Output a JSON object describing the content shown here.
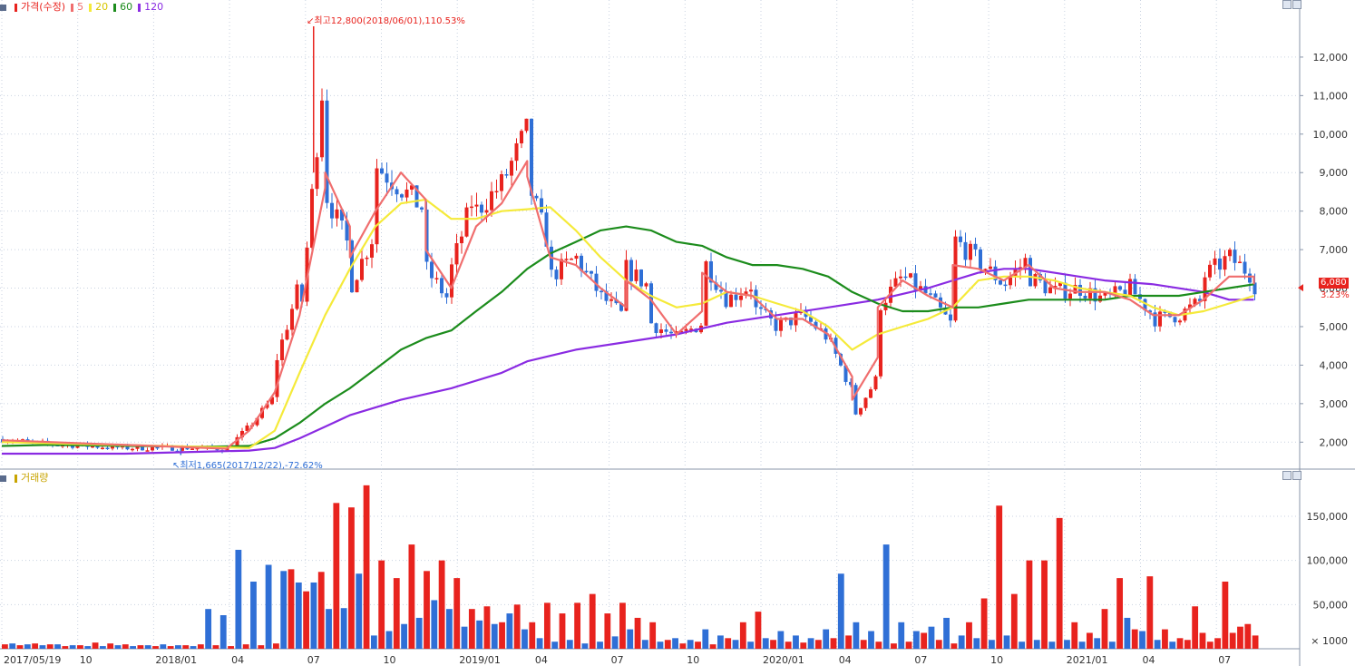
{
  "price_legend": {
    "price_label": "가격(수정)",
    "ma5": "5",
    "ma20": "20",
    "ma60": "60",
    "ma120": "120"
  },
  "volume_legend": {
    "label": "거래량"
  },
  "annotations": {
    "high": "최고12,800(2018/06/01),110.53%",
    "low": "최저1,665(2017/12/22),-72.62%"
  },
  "last_price": {
    "value": "6,080",
    "change": "3.23%"
  },
  "colors": {
    "up": "#e8231e",
    "down": "#2f6fd6",
    "ma5": "#f06e6e",
    "ma20": "#f5ea3a",
    "ma60": "#1c8c1c",
    "ma120": "#8a2be2",
    "grid": "#c9d2e0",
    "axis": "#8a96aa"
  },
  "chart_data": [
    {
      "type": "candlestick",
      "title": "가격(수정)",
      "xlabel": "",
      "ylabel": "",
      "ylim": [
        1300,
        13200
      ],
      "y_ticks": [
        2000,
        3000,
        4000,
        5000,
        6000,
        7000,
        8000,
        9000,
        10000,
        11000,
        12000
      ],
      "y_tick_labels": [
        "2,000",
        "3,000",
        "4,000",
        "5,000",
        "6,000",
        "7,000",
        "8,000",
        "9,000",
        "10,000",
        "11,000",
        "12,000"
      ],
      "close_path": [
        [
          "2017/05/19",
          2080
        ],
        [
          "2017/07",
          1950
        ],
        [
          "2017/10",
          1850
        ],
        [
          "2018/01",
          1850
        ],
        [
          "2018/02",
          1820
        ],
        [
          "2018/03",
          2400
        ],
        [
          "2018/04",
          3200
        ],
        [
          "2018/04",
          4000
        ],
        [
          "2018/05",
          6100
        ],
        [
          "2018/05",
          5000
        ],
        [
          "2018/06",
          12000
        ],
        [
          "2018/06",
          9000
        ],
        [
          "2018/06",
          8500
        ],
        [
          "2018/07",
          7000
        ],
        [
          "2018/07",
          6000
        ],
        [
          "2018/08",
          7500
        ],
        [
          "2018/08",
          9200
        ],
        [
          "2018/09",
          8600
        ],
        [
          "2018/10",
          8000
        ],
        [
          "2018/10",
          6500
        ],
        [
          "2018/11",
          5600
        ],
        [
          "2018/11",
          6500
        ],
        [
          "2018/12",
          8600
        ],
        [
          "2018/12",
          8000
        ],
        [
          "2019/01",
          8700
        ],
        [
          "2019/02",
          10100
        ],
        [
          "2019/02",
          8800
        ],
        [
          "2019/03",
          7000
        ],
        [
          "2019/03",
          6300
        ],
        [
          "2019/04",
          6800
        ],
        [
          "2019/05",
          5800
        ],
        [
          "2019/06",
          5200
        ],
        [
          "2019/06",
          6500
        ],
        [
          "2019/07",
          6000
        ],
        [
          "2019/07",
          5100
        ],
        [
          "2019/08",
          4700
        ],
        [
          "2019/09",
          5100
        ],
        [
          "2019/09",
          6800
        ],
        [
          "2019/10",
          5700
        ],
        [
          "2019/11",
          6100
        ],
        [
          "2019/11",
          5500
        ],
        [
          "2019/12",
          5000
        ],
        [
          "2020/01",
          5300
        ],
        [
          "2020/02",
          4700
        ],
        [
          "2020/03",
          3300
        ],
        [
          "2020/03",
          2600
        ],
        [
          "2020/04",
          3700
        ],
        [
          "2020/04",
          5500
        ],
        [
          "2020/05",
          6300
        ],
        [
          "2020/06",
          5800
        ],
        [
          "2020/07",
          5000
        ],
        [
          "2020/07",
          7300
        ],
        [
          "2020/08",
          6700
        ],
        [
          "2020/09",
          6100
        ],
        [
          "2020/10",
          6800
        ],
        [
          "2020/10",
          6300
        ],
        [
          "2020/11",
          5900
        ],
        [
          "2020/12",
          6000
        ],
        [
          "2021/01",
          5700
        ],
        [
          "2021/02",
          6000
        ],
        [
          "2021/03",
          5300
        ],
        [
          "2021/03",
          5200
        ],
        [
          "2021/04",
          5300
        ],
        [
          "2021/05",
          5700
        ],
        [
          "2021/05",
          6300
        ],
        [
          "2021/06",
          6800
        ],
        [
          "2021/07",
          6300
        ],
        [
          "2021/07",
          6080
        ]
      ],
      "ma5_path": [
        [
          "2017/05/19",
          2050
        ],
        [
          "2018/02",
          1830
        ],
        [
          "2018/03",
          2300
        ],
        [
          "2018/04",
          3300
        ],
        [
          "2018/05",
          5300
        ],
        [
          "2018/06",
          8600
        ],
        [
          "2018/06",
          9000
        ],
        [
          "2018/07",
          7600
        ],
        [
          "2018/07",
          6800
        ],
        [
          "2018/08",
          8000
        ],
        [
          "2018/09",
          9000
        ],
        [
          "2018/10",
          8300
        ],
        [
          "2018/10",
          7000
        ],
        [
          "2018/11",
          6000
        ],
        [
          "2018/12",
          7600
        ],
        [
          "2019/01",
          8200
        ],
        [
          "2019/02",
          9300
        ],
        [
          "2019/02",
          8900
        ],
        [
          "2019/03",
          6800
        ],
        [
          "2019/04",
          6600
        ],
        [
          "2019/05",
          6000
        ],
        [
          "2019/06",
          5500
        ],
        [
          "2019/06",
          6200
        ],
        [
          "2019/07",
          5700
        ],
        [
          "2019/08",
          4800
        ],
        [
          "2019/09",
          5400
        ],
        [
          "2019/09",
          6400
        ],
        [
          "2019/10",
          5900
        ],
        [
          "2019/11",
          5800
        ],
        [
          "2019/12",
          5200
        ],
        [
          "2020/01",
          5200
        ],
        [
          "2020/02",
          4800
        ],
        [
          "2020/03",
          3700
        ],
        [
          "2020/03",
          3100
        ],
        [
          "2020/04",
          4200
        ],
        [
          "2020/04",
          5500
        ],
        [
          "2020/05",
          6200
        ],
        [
          "2020/06",
          5800
        ],
        [
          "2020/07",
          5500
        ],
        [
          "2020/07",
          6600
        ],
        [
          "2020/08",
          6500
        ],
        [
          "2020/09",
          6200
        ],
        [
          "2020/10",
          6600
        ],
        [
          "2020/11",
          6000
        ],
        [
          "2020/12",
          5900
        ],
        [
          "2021/01",
          5900
        ],
        [
          "2021/02",
          5700
        ],
        [
          "2021/03",
          5300
        ],
        [
          "2021/04",
          5300
        ],
        [
          "2021/05",
          5700
        ],
        [
          "2021/06",
          6300
        ],
        [
          "2021/07",
          6300
        ],
        [
          "2021/07",
          6100
        ]
      ],
      "ma20_path": [
        [
          "2017/05/19",
          2000
        ],
        [
          "2018/03",
          1850
        ],
        [
          "2018/04",
          2300
        ],
        [
          "2018/05",
          3800
        ],
        [
          "2018/06",
          5300
        ],
        [
          "2018/07",
          6500
        ],
        [
          "2018/08",
          7600
        ],
        [
          "2018/09",
          8200
        ],
        [
          "2018/10",
          8300
        ],
        [
          "2018/11",
          7800
        ],
        [
          "2018/12",
          7800
        ],
        [
          "2019/01",
          8000
        ],
        [
          "2019/02",
          8050
        ],
        [
          "2019/03",
          8100
        ],
        [
          "2019/04",
          7500
        ],
        [
          "2019/05",
          6800
        ],
        [
          "2019/06",
          6200
        ],
        [
          "2019/07",
          5800
        ],
        [
          "2019/08",
          5500
        ],
        [
          "2019/09",
          5600
        ],
        [
          "2019/10",
          5900
        ],
        [
          "2019/11",
          5800
        ],
        [
          "2019/12",
          5600
        ],
        [
          "2020/01",
          5400
        ],
        [
          "2020/02",
          5000
        ],
        [
          "2020/03",
          4400
        ],
        [
          "2020/04",
          4800
        ],
        [
          "2020/05",
          5000
        ],
        [
          "2020/06",
          5200
        ],
        [
          "2020/07",
          5500
        ],
        [
          "2020/08",
          6200
        ],
        [
          "2020/09",
          6300
        ],
        [
          "2020/10",
          6300
        ],
        [
          "2020/11",
          6200
        ],
        [
          "2020/12",
          6000
        ],
        [
          "2021/01",
          5900
        ],
        [
          "2021/02",
          5800
        ],
        [
          "2021/03",
          5500
        ],
        [
          "2021/04",
          5300
        ],
        [
          "2021/05",
          5400
        ],
        [
          "2021/06",
          5600
        ],
        [
          "2021/07",
          5800
        ]
      ],
      "ma60_path": [
        [
          "2017/05/19",
          1900
        ],
        [
          "2017/07",
          1930
        ],
        [
          "2018/01",
          1880
        ],
        [
          "2018/03",
          1900
        ],
        [
          "2018/04",
          2100
        ],
        [
          "2018/05",
          2500
        ],
        [
          "2018/06",
          3000
        ],
        [
          "2018/07",
          3400
        ],
        [
          "2018/08",
          3900
        ],
        [
          "2018/09",
          4400
        ],
        [
          "2018/10",
          4700
        ],
        [
          "2018/11",
          4900
        ],
        [
          "2018/12",
          5400
        ],
        [
          "2019/01",
          5900
        ],
        [
          "2019/02",
          6500
        ],
        [
          "2019/03",
          6900
        ],
        [
          "2019/04",
          7200
        ],
        [
          "2019/05",
          7500
        ],
        [
          "2019/06",
          7600
        ],
        [
          "2019/07",
          7500
        ],
        [
          "2019/08",
          7200
        ],
        [
          "2019/09",
          7100
        ],
        [
          "2019/10",
          6800
        ],
        [
          "2019/11",
          6600
        ],
        [
          "2019/12",
          6600
        ],
        [
          "2020/01",
          6500
        ],
        [
          "2020/02",
          6300
        ],
        [
          "2020/03",
          5900
        ],
        [
          "2020/04",
          5600
        ],
        [
          "2020/05",
          5400
        ],
        [
          "2020/06",
          5400
        ],
        [
          "2020/07",
          5500
        ],
        [
          "2020/08",
          5500
        ],
        [
          "2020/09",
          5600
        ],
        [
          "2020/10",
          5700
        ],
        [
          "2020/11",
          5700
        ],
        [
          "2020/12",
          5700
        ],
        [
          "2021/01",
          5700
        ],
        [
          "2021/02",
          5800
        ],
        [
          "2021/03",
          5800
        ],
        [
          "2021/04",
          5800
        ],
        [
          "2021/05",
          5900
        ],
        [
          "2021/06",
          6000
        ],
        [
          "2021/07",
          6100
        ]
      ],
      "ma120_path": [
        [
          "2017/05/19",
          1700
        ],
        [
          "2017/10",
          1700
        ],
        [
          "2018/01",
          1750
        ],
        [
          "2018/03",
          1780
        ],
        [
          "2018/04",
          1850
        ],
        [
          "2018/05",
          2100
        ],
        [
          "2018/06",
          2400
        ],
        [
          "2018/07",
          2700
        ],
        [
          "2018/09",
          3100
        ],
        [
          "2018/11",
          3400
        ],
        [
          "2019/01",
          3800
        ],
        [
          "2019/02",
          4100
        ],
        [
          "2019/04",
          4400
        ],
        [
          "2019/06",
          4600
        ],
        [
          "2019/08",
          4800
        ],
        [
          "2019/10",
          5100
        ],
        [
          "2019/12",
          5300
        ],
        [
          "2020/02",
          5500
        ],
        [
          "2020/04",
          5700
        ],
        [
          "2020/06",
          6000
        ],
        [
          "2020/08",
          6400
        ],
        [
          "2020/09",
          6500
        ],
        [
          "2020/10",
          6500
        ],
        [
          "2020/11",
          6400
        ],
        [
          "2020/12",
          6300
        ],
        [
          "2021/01",
          6200
        ],
        [
          "2021/03",
          6100
        ],
        [
          "2021/05",
          5900
        ],
        [
          "2021/06",
          5700
        ],
        [
          "2021/07",
          5700
        ]
      ],
      "high": {
        "value": 12800,
        "date": "2018/06/01"
      },
      "low": {
        "value": 1665,
        "date": "2017/12/22"
      },
      "last": 6080
    },
    {
      "type": "bar",
      "title": "거래량",
      "xlabel": "",
      "ylabel": "",
      "unit": "× 1000",
      "ylim": [
        0,
        190000
      ],
      "y_ticks": [
        50000,
        100000,
        150000
      ],
      "y_tick_labels": [
        "50,000",
        "100,000",
        "150,000"
      ],
      "x_tick_labels": [
        "2017/05/19",
        "10",
        "2018/01",
        "04",
        "07",
        "10",
        "2019/01",
        "04",
        "07",
        "10",
        "2020/01",
        "04",
        "07",
        "10",
        "2021/01",
        "04",
        "07"
      ],
      "volumes_up": [
        5000,
        4000,
        6000,
        5000,
        3000,
        4000,
        7000,
        6000,
        5000,
        4000,
        3000,
        3000,
        4000,
        5000,
        4000,
        3000,
        5000,
        4000,
        6000,
        90000,
        65000,
        87000,
        165000,
        160000,
        185000,
        100000,
        80000,
        118000,
        88000,
        100000,
        80000,
        45000,
        48000,
        30000,
        50000,
        30000,
        52000,
        40000,
        52000,
        62000,
        40000,
        52000,
        35000,
        30000,
        10000,
        6000,
        8000,
        5000,
        12000,
        30000,
        42000,
        10000,
        8000,
        7000,
        10000,
        12000,
        15000,
        10000,
        8000,
        6000,
        8000,
        18000,
        10000,
        6000,
        30000,
        57000,
        162000,
        62000,
        100000,
        100000,
        148000,
        30000,
        18000,
        45000,
        80000,
        22000,
        82000,
        22000,
        12000,
        10000,
        48000,
        18000,
        8000,
        12000,
        76000,
        18000,
        25000,
        28000,
        15000
      ],
      "volumes_down": [
        6000,
        5000,
        4000,
        5000,
        4000,
        3000,
        3000,
        4000,
        3000,
        4000,
        5000,
        4000,
        3000,
        45000,
        38000,
        112000,
        76000,
        95000,
        88000,
        75000,
        75000,
        45000,
        46000,
        85000,
        15000,
        20000,
        28000,
        35000,
        55000,
        45000,
        25000,
        32000,
        28000,
        40000,
        22000,
        12000,
        8000,
        10000,
        6000,
        8000,
        14000,
        22000,
        10000,
        8000,
        12000,
        10000,
        22000,
        15000,
        10000,
        8000,
        12000,
        20000,
        15000,
        12000,
        22000,
        85000,
        30000,
        20000,
        118000,
        30000,
        20000,
        25000,
        35000,
        15000,
        12000,
        10000,
        15000,
        8000,
        10000,
        8000,
        10000,
        8000,
        12000,
        8000,
        35000,
        20000,
        10000,
        8000
      ]
    }
  ]
}
